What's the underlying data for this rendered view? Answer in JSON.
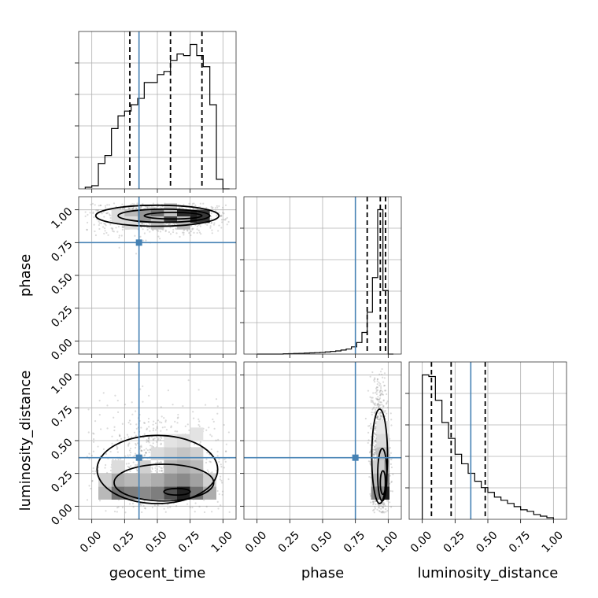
{
  "chart_data": {
    "type": "corner",
    "parameters": [
      "geocent_time",
      "phase",
      "luminosity_distance"
    ],
    "range": [
      -0.1,
      1.1
    ],
    "tick_labels": [
      "0.00",
      "0.25",
      "0.50",
      "0.75",
      "1.00"
    ],
    "tick_values": [
      0,
      0.25,
      0.5,
      0.75,
      1.0
    ],
    "truths": {
      "geocent_time": 0.36,
      "phase": 0.75,
      "luminosity_distance": 0.37
    },
    "marginals": {
      "geocent_time": {
        "bin_edges": [
          -0.05,
          0.0,
          0.05,
          0.1,
          0.15,
          0.2,
          0.25,
          0.3,
          0.35,
          0.4,
          0.45,
          0.5,
          0.55,
          0.6,
          0.65,
          0.7,
          0.75,
          0.8,
          0.85,
          0.9,
          0.95,
          1.0,
          1.05
        ],
        "counts": [
          0.01,
          0.02,
          0.16,
          0.21,
          0.38,
          0.46,
          0.49,
          0.53,
          0.57,
          0.67,
          0.67,
          0.72,
          0.74,
          0.81,
          0.85,
          0.84,
          0.91,
          0.84,
          0.77,
          0.53,
          0.06,
          0.0
        ],
        "quantiles": [
          0.29,
          0.6,
          0.84
        ]
      },
      "phase": {
        "bin_edges": [
          0.0,
          0.04,
          0.08,
          0.12,
          0.16,
          0.2,
          0.24,
          0.28,
          0.32,
          0.36,
          0.4,
          0.44,
          0.48,
          0.52,
          0.56,
          0.6,
          0.64,
          0.68,
          0.72,
          0.76,
          0.8,
          0.84,
          0.88,
          0.92,
          0.96,
          1.0,
          1.04
        ],
        "counts": [
          0,
          0,
          0,
          0,
          0,
          0.002,
          0.003,
          0.004,
          0.005,
          0.007,
          0.008,
          0.01,
          0.012,
          0.015,
          0.018,
          0.022,
          0.028,
          0.035,
          0.05,
          0.08,
          0.15,
          0.29,
          0.53,
          1.0,
          0.44,
          0.0
        ],
        "quantiles": [
          0.84,
          0.94,
          0.98
        ]
      },
      "luminosity_distance": {
        "bin_edges": [
          0.0,
          0.05,
          0.1,
          0.15,
          0.2,
          0.25,
          0.3,
          0.35,
          0.4,
          0.45,
          0.5,
          0.55,
          0.6,
          0.65,
          0.7,
          0.75,
          0.8,
          0.85,
          0.9,
          0.95,
          1.0
        ],
        "counts": [
          0.91,
          0.9,
          0.75,
          0.61,
          0.51,
          0.41,
          0.35,
          0.29,
          0.24,
          0.2,
          0.17,
          0.14,
          0.12,
          0.1,
          0.08,
          0.06,
          0.05,
          0.03,
          0.02,
          0.01
        ],
        "quantiles": [
          0.07,
          0.22,
          0.48
        ]
      }
    },
    "joint": [
      {
        "x": "geocent_time",
        "y": "phase",
        "cells": [
          [
            0.2,
            0.95,
            0.15
          ],
          [
            0.3,
            0.95,
            0.3
          ],
          [
            0.4,
            0.95,
            0.45
          ],
          [
            0.5,
            0.95,
            0.6
          ],
          [
            0.6,
            0.95,
            0.8
          ],
          [
            0.7,
            0.95,
            0.9
          ],
          [
            0.8,
            0.95,
            0.95
          ],
          [
            0.85,
            0.95,
            0.85
          ],
          [
            0.3,
            0.9,
            0.15
          ],
          [
            0.5,
            0.9,
            0.25
          ],
          [
            0.7,
            0.9,
            0.3
          ],
          [
            0.6,
            1.0,
            0.25
          ]
        ],
        "contours": [
          {
            "cx": 0.5,
            "cy": 0.955,
            "rx": 0.47,
            "ry": 0.08
          },
          {
            "cx": 0.55,
            "cy": 0.955,
            "rx": 0.35,
            "ry": 0.05
          },
          {
            "cx": 0.62,
            "cy": 0.955,
            "rx": 0.22,
            "ry": 0.025
          }
        ]
      },
      {
        "x": "geocent_time",
        "y": "luminosity_distance",
        "cells": [
          [
            0.1,
            0.1,
            0.3
          ],
          [
            0.2,
            0.1,
            0.6
          ],
          [
            0.3,
            0.1,
            0.55
          ],
          [
            0.4,
            0.1,
            0.5
          ],
          [
            0.5,
            0.1,
            0.55
          ],
          [
            0.6,
            0.1,
            0.75
          ],
          [
            0.7,
            0.1,
            0.95
          ],
          [
            0.8,
            0.1,
            0.6
          ],
          [
            0.9,
            0.1,
            0.35
          ],
          [
            0.1,
            0.2,
            0.2
          ],
          [
            0.2,
            0.2,
            0.35
          ],
          [
            0.3,
            0.2,
            0.3
          ],
          [
            0.4,
            0.2,
            0.3
          ],
          [
            0.5,
            0.2,
            0.35
          ],
          [
            0.6,
            0.2,
            0.45
          ],
          [
            0.7,
            0.2,
            0.5
          ],
          [
            0.8,
            0.2,
            0.4
          ],
          [
            0.9,
            0.2,
            0.2
          ],
          [
            0.2,
            0.3,
            0.15
          ],
          [
            0.4,
            0.3,
            0.2
          ],
          [
            0.6,
            0.3,
            0.3
          ],
          [
            0.7,
            0.3,
            0.35
          ],
          [
            0.8,
            0.3,
            0.3
          ],
          [
            0.5,
            0.4,
            0.15
          ],
          [
            0.6,
            0.4,
            0.2
          ],
          [
            0.7,
            0.4,
            0.25
          ],
          [
            0.8,
            0.4,
            0.2
          ],
          [
            0.6,
            0.5,
            0.12
          ],
          [
            0.7,
            0.5,
            0.15
          ],
          [
            0.8,
            0.55,
            0.12
          ]
        ],
        "contours": [
          {
            "cx": 0.5,
            "cy": 0.28,
            "rx": 0.46,
            "ry": 0.26
          },
          {
            "cx": 0.55,
            "cy": 0.18,
            "rx": 0.38,
            "ry": 0.14
          },
          {
            "cx": 0.65,
            "cy": 0.11,
            "rx": 0.1,
            "ry": 0.025
          }
        ]
      },
      {
        "x": "phase",
        "y": "luminosity_distance",
        "cells": [
          [
            0.96,
            0.1,
            0.95
          ],
          [
            0.92,
            0.1,
            0.5
          ],
          [
            0.96,
            0.2,
            0.6
          ],
          [
            0.92,
            0.2,
            0.3
          ],
          [
            0.96,
            0.3,
            0.4
          ],
          [
            0.92,
            0.3,
            0.2
          ],
          [
            0.96,
            0.4,
            0.25
          ],
          [
            0.96,
            0.5,
            0.15
          ],
          [
            0.96,
            0.6,
            0.1
          ]
        ],
        "contours": [
          {
            "cx": 0.935,
            "cy": 0.38,
            "rx": 0.06,
            "ry": 0.36
          },
          {
            "cx": 0.955,
            "cy": 0.24,
            "rx": 0.035,
            "ry": 0.2
          },
          {
            "cx": 0.96,
            "cy": 0.18,
            "rx": 0.02,
            "ry": 0.09
          }
        ]
      }
    ]
  }
}
